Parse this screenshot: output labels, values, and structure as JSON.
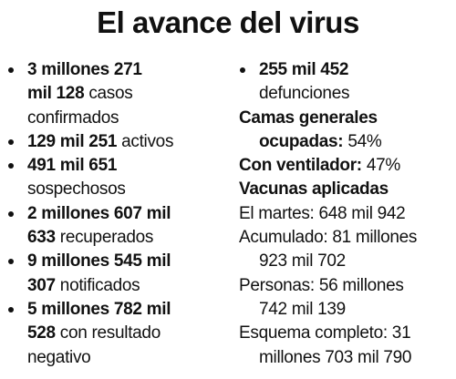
{
  "title": "El avance del virus",
  "columns": [
    {
      "items": [
        {
          "bullet": true,
          "bold": "3 millones 271\nmil 128",
          "text": "casos\nconfirmados"
        },
        {
          "bullet": true,
          "bold": "129 mil 251",
          "text": "activos"
        },
        {
          "bullet": true,
          "bold": "491 mil 651",
          "text": "\nsospechosos"
        },
        {
          "bullet": true,
          "bold": "2 millones 607 mil\n633",
          "text": "recuperados"
        },
        {
          "bullet": true,
          "bold": "9 millones 545 mil\n307",
          "text": "notificados"
        },
        {
          "bullet": true,
          "bold": "5 millones 782 mil\n528",
          "text": "con resultado\nnegativo"
        }
      ]
    },
    {
      "items": [
        {
          "bullet": true,
          "bold": "255 mil 452",
          "text": "\ndefunciones"
        },
        {
          "bullet": false,
          "bold": "Camas generales\nocupadas:",
          "text": "54%"
        },
        {
          "bullet": false,
          "bold": "Con ventilador:",
          "text": "47%"
        },
        {
          "bullet": false,
          "bold": "Vacunas aplicadas"
        },
        {
          "bullet": false,
          "text": "El martes: 648 mil 942"
        },
        {
          "bullet": false,
          "text": "Acumulado: 81 millones\n923 mil 702"
        },
        {
          "bullet": false,
          "text": "Personas: 56 millones\n742 mil 139"
        },
        {
          "bullet": false,
          "text": "Esquema completo: 31\nmillones 703 mil 790"
        }
      ]
    }
  ]
}
